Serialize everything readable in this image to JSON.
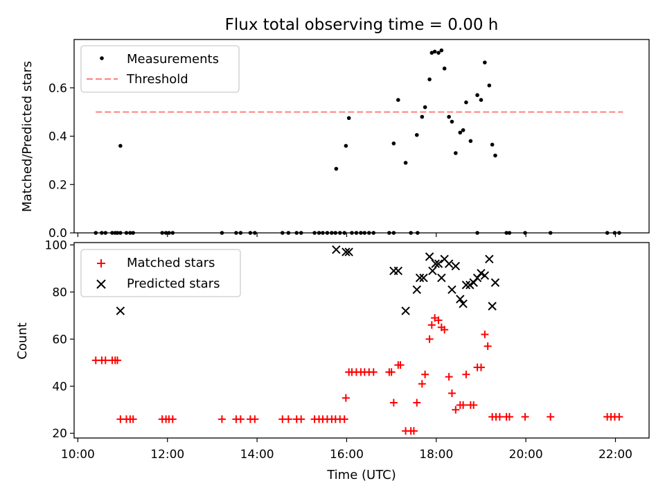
{
  "figure": {
    "title": "Flux total observing time = 0.00 h",
    "xlabel": "Time (UTC)"
  },
  "colors": {
    "measurement": "#000000",
    "threshold": "#ff7f7f",
    "matched": "#ff0000",
    "predicted": "#000000"
  },
  "chart_data": [
    {
      "type": "scatter",
      "panel": "top",
      "ylabel": "Matched/Predicted stars",
      "xlim": [
        "09:55",
        "22:45"
      ],
      "ylim": [
        0,
        0.8
      ],
      "yticks": [
        0.0,
        0.2,
        0.4,
        0.6
      ],
      "ytick_labels": [
        "0.0",
        "0.2",
        "0.4",
        "0.6"
      ],
      "legend_position": "upper-left",
      "legend": [
        {
          "key": "measurements",
          "label": "Measurements"
        },
        {
          "key": "threshold",
          "label": "Threshold"
        }
      ],
      "threshold": {
        "value": 0.5,
        "x_start": "10:24",
        "x_end": "22:10"
      },
      "series": [
        {
          "name": "Measurements",
          "marker": "dot",
          "points": [
            [
              "10:24",
              0
            ],
            [
              "10:32",
              0
            ],
            [
              "10:37",
              0
            ],
            [
              "10:46",
              0
            ],
            [
              "10:50",
              0
            ],
            [
              "10:53",
              0
            ],
            [
              "10:57",
              0
            ],
            [
              "11:05",
              0
            ],
            [
              "11:10",
              0
            ],
            [
              "11:14",
              0
            ],
            [
              "11:53",
              0
            ],
            [
              "11:58",
              0
            ],
            [
              "12:02",
              0
            ],
            [
              "12:07",
              0
            ],
            [
              "13:13",
              0
            ],
            [
              "13:32",
              0
            ],
            [
              "13:38",
              0
            ],
            [
              "13:51",
              0
            ],
            [
              "13:57",
              0
            ],
            [
              "14:34",
              0
            ],
            [
              "14:42",
              0
            ],
            [
              "14:53",
              0
            ],
            [
              "14:59",
              0
            ],
            [
              "15:17",
              0
            ],
            [
              "15:23",
              0
            ],
            [
              "15:28",
              0
            ],
            [
              "15:34",
              0
            ],
            [
              "15:40",
              0
            ],
            [
              "15:45",
              0
            ],
            [
              "15:51",
              0
            ],
            [
              "15:57",
              0
            ],
            [
              "16:07",
              0
            ],
            [
              "16:13",
              0
            ],
            [
              "16:19",
              0
            ],
            [
              "16:24",
              0
            ],
            [
              "16:30",
              0
            ],
            [
              "16:36",
              0
            ],
            [
              "16:57",
              0
            ],
            [
              "17:03",
              0
            ],
            [
              "17:26",
              0
            ],
            [
              "17:35",
              0
            ],
            [
              "18:55",
              0
            ],
            [
              "19:34",
              0
            ],
            [
              "19:38",
              0
            ],
            [
              "19:59",
              0
            ],
            [
              "20:33",
              0
            ],
            [
              "21:49",
              0
            ],
            [
              "21:59",
              0
            ],
            [
              "22:05",
              0
            ],
            [
              "10:57",
              0.36
            ],
            [
              "15:46",
              0.265
            ],
            [
              "15:59",
              0.36
            ],
            [
              "16:03",
              0.475
            ],
            [
              "17:03",
              0.37
            ],
            [
              "17:09",
              0.55
            ],
            [
              "17:19",
              0.29
            ],
            [
              "17:34",
              0.405
            ],
            [
              "17:41",
              0.48
            ],
            [
              "17:45",
              0.52
            ],
            [
              "17:51",
              0.635
            ],
            [
              "17:54",
              0.745
            ],
            [
              "17:58",
              0.75
            ],
            [
              "18:03",
              0.745
            ],
            [
              "18:07",
              0.755
            ],
            [
              "18:11",
              0.68
            ],
            [
              "18:17",
              0.48
            ],
            [
              "18:21",
              0.46
            ],
            [
              "18:26",
              0.33
            ],
            [
              "18:32",
              0.415
            ],
            [
              "18:36",
              0.425
            ],
            [
              "18:40",
              0.54
            ],
            [
              "18:46",
              0.38
            ],
            [
              "18:55",
              0.57
            ],
            [
              "19:00",
              0.55
            ],
            [
              "19:05",
              0.705
            ],
            [
              "19:11",
              0.61
            ],
            [
              "19:15",
              0.365
            ],
            [
              "19:19",
              0.32
            ]
          ]
        }
      ]
    },
    {
      "type": "scatter",
      "panel": "bottom",
      "ylabel": "Count",
      "xlim": [
        "09:55",
        "22:45"
      ],
      "ylim": [
        18,
        101
      ],
      "yticks": [
        20,
        40,
        60,
        80,
        100
      ],
      "ytick_labels": [
        "20",
        "40",
        "60",
        "80",
        "100"
      ],
      "xticks": [
        "10:00",
        "12:00",
        "14:00",
        "16:00",
        "18:00",
        "20:00",
        "22:00"
      ],
      "xtick_labels": [
        "10:00",
        "12:00",
        "14:00",
        "16:00",
        "18:00",
        "20:00",
        "22:00"
      ],
      "legend_position": "upper-left",
      "legend": [
        {
          "key": "matched",
          "label": "Matched stars"
        },
        {
          "key": "predicted",
          "label": "Predicted stars"
        }
      ],
      "series": [
        {
          "name": "Matched stars",
          "marker": "plus",
          "points": [
            [
              "10:24",
              51
            ],
            [
              "10:32",
              51
            ],
            [
              "10:37",
              51
            ],
            [
              "10:46",
              51
            ],
            [
              "10:50",
              51
            ],
            [
              "10:53",
              51
            ],
            [
              "10:57",
              26
            ],
            [
              "11:05",
              26
            ],
            [
              "11:10",
              26
            ],
            [
              "11:14",
              26
            ],
            [
              "11:53",
              26
            ],
            [
              "11:58",
              26
            ],
            [
              "12:02",
              26
            ],
            [
              "12:07",
              26
            ],
            [
              "13:13",
              26
            ],
            [
              "13:32",
              26
            ],
            [
              "13:38",
              26
            ],
            [
              "13:51",
              26
            ],
            [
              "13:57",
              26
            ],
            [
              "14:34",
              26
            ],
            [
              "14:42",
              26
            ],
            [
              "14:53",
              26
            ],
            [
              "14:59",
              26
            ],
            [
              "15:17",
              26
            ],
            [
              "15:23",
              26
            ],
            [
              "15:28",
              26
            ],
            [
              "15:34",
              26
            ],
            [
              "15:40",
              26
            ],
            [
              "15:45",
              26
            ],
            [
              "15:51",
              26
            ],
            [
              "15:57",
              26
            ],
            [
              "15:59",
              35
            ],
            [
              "16:03",
              46
            ],
            [
              "16:07",
              46
            ],
            [
              "16:13",
              46
            ],
            [
              "16:19",
              46
            ],
            [
              "16:24",
              46
            ],
            [
              "16:30",
              46
            ],
            [
              "16:36",
              46
            ],
            [
              "16:57",
              46
            ],
            [
              "17:00",
              46
            ],
            [
              "17:03",
              33
            ],
            [
              "17:09",
              49
            ],
            [
              "17:12",
              49
            ],
            [
              "17:19",
              21
            ],
            [
              "17:26",
              21
            ],
            [
              "17:30",
              21
            ],
            [
              "17:34",
              33
            ],
            [
              "17:41",
              41
            ],
            [
              "17:45",
              45
            ],
            [
              "17:51",
              60
            ],
            [
              "17:54",
              66
            ],
            [
              "17:58",
              69
            ],
            [
              "18:03",
              68
            ],
            [
              "18:07",
              65
            ],
            [
              "18:11",
              64
            ],
            [
              "18:17",
              44
            ],
            [
              "18:21",
              37
            ],
            [
              "18:26",
              30
            ],
            [
              "18:32",
              32
            ],
            [
              "18:36",
              32
            ],
            [
              "18:40",
              45
            ],
            [
              "18:46",
              32
            ],
            [
              "18:50",
              32
            ],
            [
              "18:55",
              48
            ],
            [
              "19:00",
              48
            ],
            [
              "19:05",
              62
            ],
            [
              "19:09",
              57
            ],
            [
              "19:15",
              27
            ],
            [
              "19:20",
              27
            ],
            [
              "19:25",
              27
            ],
            [
              "19:34",
              27
            ],
            [
              "19:38",
              27
            ],
            [
              "19:59",
              27
            ],
            [
              "20:33",
              27
            ],
            [
              "21:49",
              27
            ],
            [
              "21:54",
              27
            ],
            [
              "21:59",
              27
            ],
            [
              "22:05",
              27
            ]
          ]
        },
        {
          "name": "Predicted stars",
          "marker": "x",
          "points": [
            [
              "10:57",
              72
            ],
            [
              "15:46",
              98
            ],
            [
              "15:59",
              97
            ],
            [
              "16:03",
              97
            ],
            [
              "17:03",
              89
            ],
            [
              "17:09",
              89
            ],
            [
              "17:19",
              72
            ],
            [
              "17:34",
              81
            ],
            [
              "17:38",
              86
            ],
            [
              "17:43",
              86
            ],
            [
              "17:51",
              95
            ],
            [
              "17:55",
              89
            ],
            [
              "17:59",
              92
            ],
            [
              "18:03",
              92
            ],
            [
              "18:07",
              86
            ],
            [
              "18:11",
              94
            ],
            [
              "18:17",
              92
            ],
            [
              "18:21",
              81
            ],
            [
              "18:26",
              91
            ],
            [
              "18:32",
              77
            ],
            [
              "18:36",
              75
            ],
            [
              "18:40",
              83
            ],
            [
              "18:45",
              83
            ],
            [
              "18:50",
              84
            ],
            [
              "18:55",
              86
            ],
            [
              "19:00",
              88
            ],
            [
              "19:05",
              87
            ],
            [
              "19:11",
              94
            ],
            [
              "19:15",
              74
            ],
            [
              "19:19",
              84
            ]
          ]
        }
      ]
    }
  ]
}
